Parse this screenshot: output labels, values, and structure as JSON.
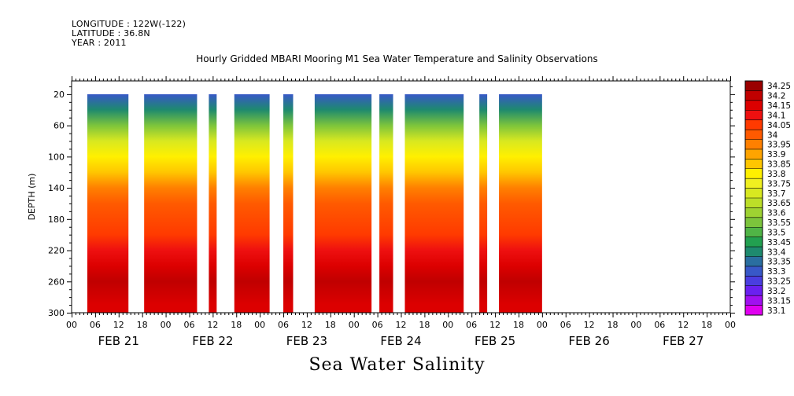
{
  "header": {
    "longitude": "LONGITUDE : 122W(-122)",
    "latitude": "LATITUDE : 36.8N",
    "year": "YEAR : 2011"
  },
  "chart_data": {
    "type": "heatmap",
    "title": "Hourly Gridded MBARI Mooring M1 Sea Water Temperature and Salinity Observations",
    "bottom_title": "Sea Water Salinity",
    "xlabel": "",
    "ylabel": "DEPTH (m)",
    "x_hour_ticks": [
      "00",
      "06",
      "12",
      "18",
      "00",
      "06",
      "12",
      "18",
      "00",
      "06",
      "12",
      "18",
      "00",
      "06",
      "12",
      "18",
      "00",
      "06",
      "12",
      "18",
      "00",
      "06",
      "12",
      "18",
      "00",
      "06",
      "12",
      "18",
      "00"
    ],
    "x_day_labels": [
      "FEB 21",
      "FEB 22",
      "FEB 23",
      "FEB 24",
      "FEB 25",
      "FEB 26",
      "FEB 27"
    ],
    "y_ticks": [
      20,
      60,
      100,
      140,
      180,
      220,
      260,
      300
    ],
    "ylim": [
      300,
      3
    ],
    "xlim_hours": [
      0,
      168
    ],
    "colorbar": {
      "levels": [
        "34.25",
        "34.2",
        "34.15",
        "34.1",
        "34.05",
        "34",
        "33.95",
        "33.9",
        "33.85",
        "33.8",
        "33.75",
        "33.7",
        "33.65",
        "33.6",
        "33.55",
        "33.5",
        "33.45",
        "33.4",
        "33.35",
        "33.3",
        "33.25",
        "33.2",
        "33.15",
        "33.1"
      ],
      "colors": [
        "#9a0000",
        "#c00000",
        "#dc0000",
        "#ee1010",
        "#ff3a00",
        "#ff5a00",
        "#ff8000",
        "#ffa400",
        "#ffc600",
        "#fff000",
        "#f0f020",
        "#d8e820",
        "#bcde28",
        "#9ed232",
        "#7cc43c",
        "#50b446",
        "#22a050",
        "#1e8a6e",
        "#2a6ea0",
        "#3858c8",
        "#4a3ee0",
        "#6a20f0",
        "#a010f0",
        "#e000f0"
      ]
    },
    "data_segments_hours": [
      [
        4,
        14.5
      ],
      [
        18.5,
        32
      ],
      [
        35,
        37
      ],
      [
        41.5,
        50.5
      ],
      [
        54,
        56.5
      ],
      [
        62,
        76.5
      ],
      [
        78.5,
        82
      ],
      [
        85,
        100
      ],
      [
        104,
        106
      ],
      [
        109,
        120
      ]
    ],
    "profile": [
      {
        "depth": 20,
        "salinity": 33.3
      },
      {
        "depth": 40,
        "salinity": 33.4
      },
      {
        "depth": 60,
        "salinity": 33.55
      },
      {
        "depth": 80,
        "salinity": 33.7
      },
      {
        "depth": 100,
        "salinity": 33.8
      },
      {
        "depth": 120,
        "salinity": 33.85
      },
      {
        "depth": 140,
        "salinity": 33.95
      },
      {
        "depth": 160,
        "salinity": 34.0
      },
      {
        "depth": 200,
        "salinity": 34.05
      },
      {
        "depth": 220,
        "salinity": 34.1
      },
      {
        "depth": 240,
        "salinity": 34.15
      },
      {
        "depth": 260,
        "salinity": 34.2
      },
      {
        "depth": 290,
        "salinity": 34.15
      }
    ]
  }
}
